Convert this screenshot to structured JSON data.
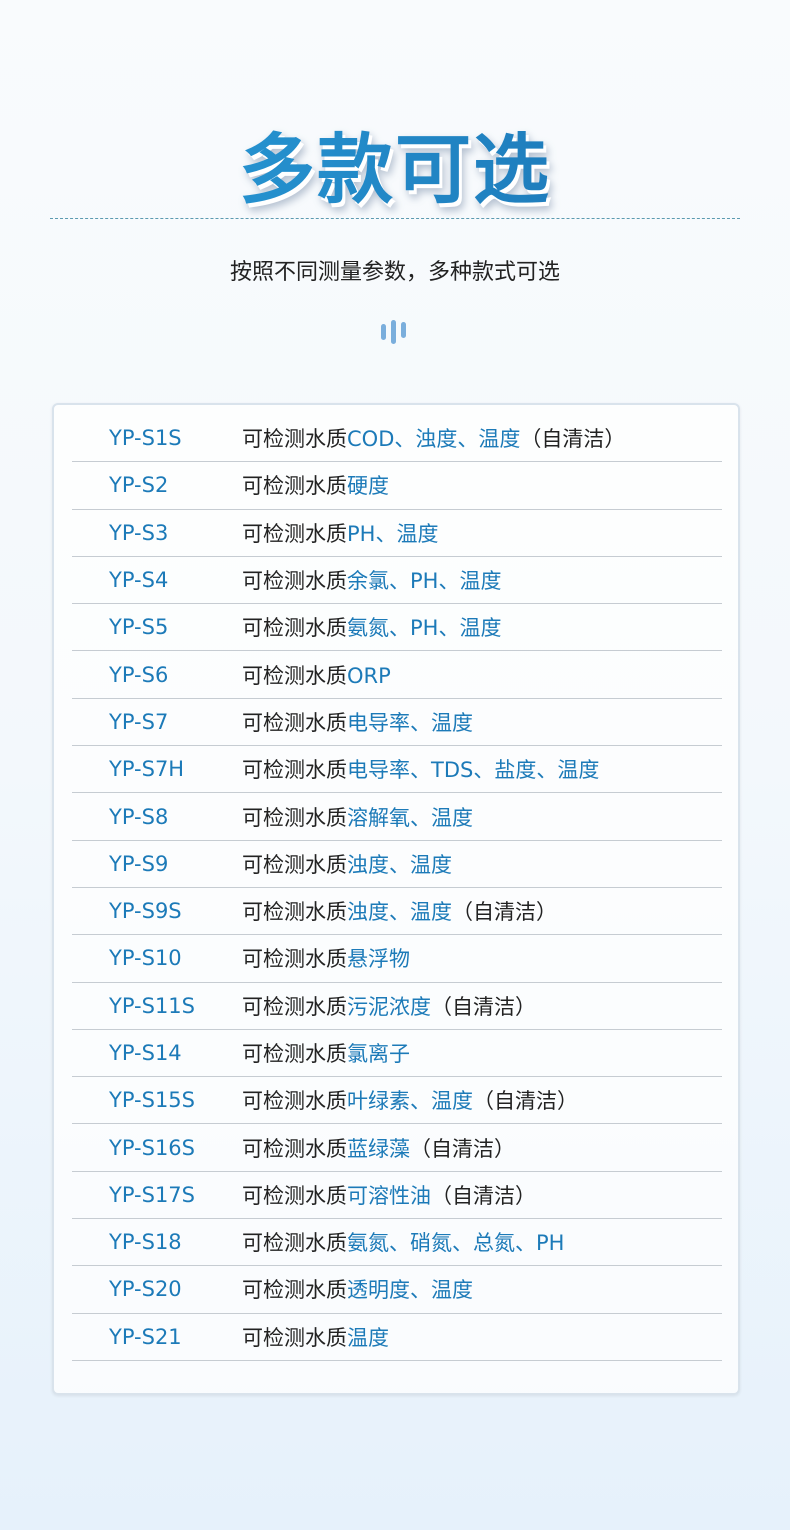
{
  "header": {
    "title": "多款可选",
    "subtitle": "按照不同测量参数，多种款式可选"
  },
  "colors": {
    "accent": "#1c7ab8",
    "text": "#222222"
  },
  "models": [
    {
      "model": "YP-S1S",
      "prefix": "可检测水质",
      "params": "COD、浊度、温度",
      "suffix": "（自清洁）"
    },
    {
      "model": "YP-S2",
      "prefix": "可检测水质",
      "params": "硬度",
      "suffix": ""
    },
    {
      "model": "YP-S3",
      "prefix": "可检测水质",
      "params": "PH、温度",
      "suffix": ""
    },
    {
      "model": "YP-S4",
      "prefix": "可检测水质",
      "params": "余氯、PH、温度",
      "suffix": ""
    },
    {
      "model": "YP-S5",
      "prefix": "可检测水质",
      "params": "氨氮、PH、温度",
      "suffix": ""
    },
    {
      "model": "YP-S6",
      "prefix": "可检测水质",
      "params": "ORP",
      "suffix": ""
    },
    {
      "model": "YP-S7",
      "prefix": "可检测水质",
      "params": "电导率、温度",
      "suffix": ""
    },
    {
      "model": "YP-S7H",
      "prefix": "可检测水质",
      "params": "电导率、TDS、盐度、温度",
      "suffix": ""
    },
    {
      "model": "YP-S8",
      "prefix": "可检测水质",
      "params": "溶解氧、温度",
      "suffix": ""
    },
    {
      "model": "YP-S9",
      "prefix": "可检测水质",
      "params": "浊度、温度",
      "suffix": ""
    },
    {
      "model": "YP-S9S",
      "prefix": "可检测水质",
      "params": "浊度、温度",
      "suffix": "（自清洁）"
    },
    {
      "model": "YP-S10",
      "prefix": "可检测水质",
      "params": "悬浮物",
      "suffix": ""
    },
    {
      "model": "YP-S11S",
      "prefix": "可检测水质",
      "params": "污泥浓度",
      "suffix": "（自清洁）"
    },
    {
      "model": "YP-S14",
      "prefix": "可检测水质",
      "params": "氯离子",
      "suffix": ""
    },
    {
      "model": "YP-S15S",
      "prefix": "可检测水质",
      "params": "叶绿素、温度",
      "suffix": "（自清洁）"
    },
    {
      "model": "YP-S16S",
      "prefix": "可检测水质",
      "params": "蓝绿藻",
      "suffix": "（自清洁）"
    },
    {
      "model": "YP-S17S",
      "prefix": "可检测水质",
      "params": "可溶性油",
      "suffix": "（自清洁）"
    },
    {
      "model": "YP-S18",
      "prefix": "可检测水质",
      "params": "氨氮、硝氮、总氮、PH",
      "suffix": ""
    },
    {
      "model": "YP-S20",
      "prefix": "可检测水质",
      "params": "透明度、温度",
      "suffix": ""
    },
    {
      "model": "YP-S21",
      "prefix": "可检测水质",
      "params": "温度",
      "suffix": ""
    }
  ]
}
